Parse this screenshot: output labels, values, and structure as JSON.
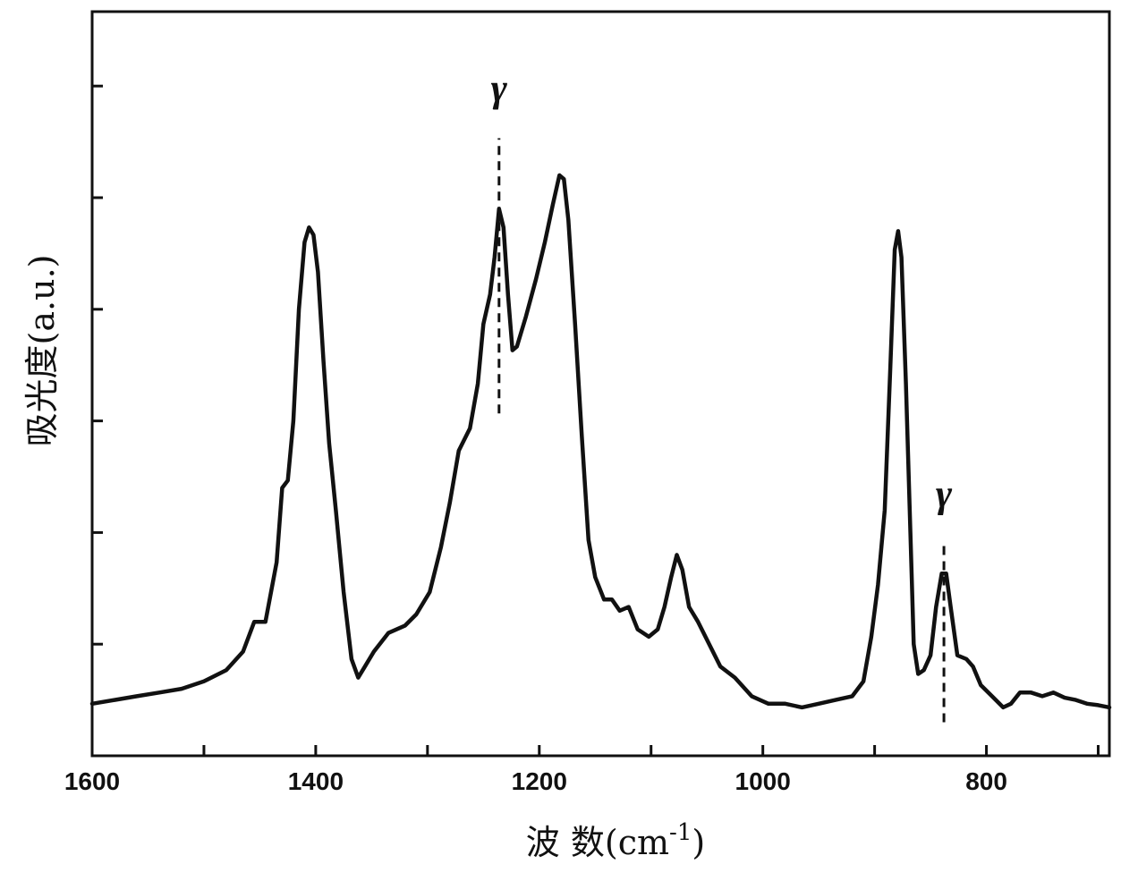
{
  "chart_data": {
    "type": "line",
    "title": "",
    "xlabel": "波  数(cm-1)",
    "xlabel_parts": {
      "main": "波  数(cm",
      "sup": "-1",
      "close": ")"
    },
    "ylabel": "吸光度(a.u.)",
    "xlim": [
      1600,
      690
    ],
    "x_reversed": true,
    "ylim": [
      0,
      1.0
    ],
    "y_tick_labels_shown": false,
    "y_ticks": [
      0.15,
      0.3,
      0.45,
      0.6,
      0.75,
      0.9
    ],
    "x_ticks": [
      1600,
      1500,
      1400,
      1300,
      1200,
      1100,
      1000,
      900,
      800,
      700
    ],
    "x_tick_labels": [
      {
        "value": 1600,
        "label": "1600"
      },
      {
        "value": 1400,
        "label": "1400"
      },
      {
        "value": 1200,
        "label": "1200"
      },
      {
        "value": 1000,
        "label": "1000"
      },
      {
        "value": 800,
        "label": "800"
      }
    ],
    "grid": false,
    "legend": "none",
    "line_color": "#111111",
    "series": [
      {
        "points": [
          [
            1600,
            0.07
          ],
          [
            1580,
            0.075
          ],
          [
            1560,
            0.08
          ],
          [
            1540,
            0.085
          ],
          [
            1520,
            0.09
          ],
          [
            1500,
            0.1
          ],
          [
            1480,
            0.115
          ],
          [
            1465,
            0.14
          ],
          [
            1455,
            0.18
          ],
          [
            1445,
            0.18
          ],
          [
            1435,
            0.26
          ],
          [
            1430,
            0.36
          ],
          [
            1425,
            0.37
          ],
          [
            1420,
            0.45
          ],
          [
            1415,
            0.6
          ],
          [
            1410,
            0.69
          ],
          [
            1406,
            0.71
          ],
          [
            1402,
            0.7
          ],
          [
            1398,
            0.65
          ],
          [
            1393,
            0.53
          ],
          [
            1388,
            0.42
          ],
          [
            1382,
            0.33
          ],
          [
            1375,
            0.22
          ],
          [
            1368,
            0.13
          ],
          [
            1362,
            0.105
          ],
          [
            1356,
            0.12
          ],
          [
            1348,
            0.14
          ],
          [
            1335,
            0.165
          ],
          [
            1320,
            0.175
          ],
          [
            1310,
            0.19
          ],
          [
            1298,
            0.22
          ],
          [
            1288,
            0.28
          ],
          [
            1280,
            0.34
          ],
          [
            1272,
            0.41
          ],
          [
            1262,
            0.44
          ],
          [
            1255,
            0.5
          ],
          [
            1250,
            0.58
          ],
          [
            1244,
            0.62
          ],
          [
            1240,
            0.67
          ],
          [
            1236,
            0.735
          ],
          [
            1232,
            0.71
          ],
          [
            1228,
            0.62
          ],
          [
            1224,
            0.545
          ],
          [
            1220,
            0.55
          ],
          [
            1212,
            0.59
          ],
          [
            1203,
            0.64
          ],
          [
            1195,
            0.69
          ],
          [
            1188,
            0.74
          ],
          [
            1182,
            0.78
          ],
          [
            1178,
            0.775
          ],
          [
            1174,
            0.72
          ],
          [
            1168,
            0.58
          ],
          [
            1162,
            0.43
          ],
          [
            1156,
            0.29
          ],
          [
            1150,
            0.24
          ],
          [
            1142,
            0.21
          ],
          [
            1135,
            0.21
          ],
          [
            1128,
            0.195
          ],
          [
            1120,
            0.2
          ],
          [
            1112,
            0.17
          ],
          [
            1102,
            0.16
          ],
          [
            1094,
            0.17
          ],
          [
            1088,
            0.2
          ],
          [
            1082,
            0.24
          ],
          [
            1077,
            0.27
          ],
          [
            1072,
            0.25
          ],
          [
            1066,
            0.2
          ],
          [
            1058,
            0.18
          ],
          [
            1048,
            0.15
          ],
          [
            1038,
            0.12
          ],
          [
            1025,
            0.105
          ],
          [
            1010,
            0.08
          ],
          [
            995,
            0.07
          ],
          [
            980,
            0.07
          ],
          [
            965,
            0.065
          ],
          [
            950,
            0.07
          ],
          [
            935,
            0.075
          ],
          [
            920,
            0.08
          ],
          [
            910,
            0.1
          ],
          [
            903,
            0.16
          ],
          [
            897,
            0.23
          ],
          [
            891,
            0.33
          ],
          [
            886,
            0.52
          ],
          [
            882,
            0.68
          ],
          [
            879,
            0.705
          ],
          [
            876,
            0.67
          ],
          [
            872,
            0.5
          ],
          [
            868,
            0.3
          ],
          [
            865,
            0.15
          ],
          [
            861,
            0.11
          ],
          [
            856,
            0.115
          ],
          [
            850,
            0.135
          ],
          [
            845,
            0.2
          ],
          [
            840,
            0.245
          ],
          [
            836,
            0.245
          ],
          [
            832,
            0.2
          ],
          [
            826,
            0.135
          ],
          [
            818,
            0.13
          ],
          [
            812,
            0.12
          ],
          [
            805,
            0.095
          ],
          [
            795,
            0.08
          ],
          [
            785,
            0.065
          ],
          [
            778,
            0.07
          ],
          [
            770,
            0.085
          ],
          [
            760,
            0.085
          ],
          [
            750,
            0.08
          ],
          [
            740,
            0.085
          ],
          [
            730,
            0.078
          ],
          [
            720,
            0.075
          ],
          [
            710,
            0.07
          ],
          [
            700,
            0.068
          ],
          [
            690,
            0.065
          ]
        ]
      }
    ],
    "annotations": [
      {
        "text": "γ",
        "x": 1236,
        "type": "dashed-marker",
        "y_from": 0.46,
        "y_to": 0.83,
        "label_y": 0.88
      },
      {
        "text": "γ",
        "x": 838,
        "type": "dashed-marker",
        "y_from": 0.045,
        "y_to": 0.29,
        "label_y": 0.335
      }
    ]
  }
}
